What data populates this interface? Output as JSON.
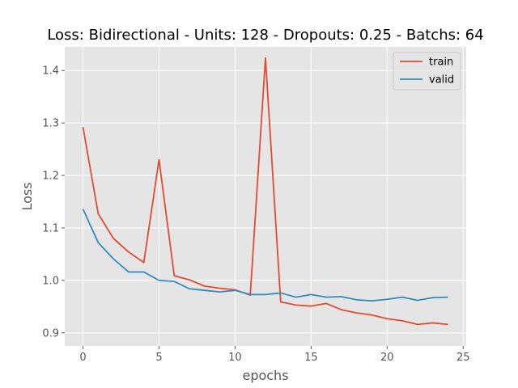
{
  "chart_data": {
    "type": "line",
    "title": "Loss: Bidirectional - Units: 128 - Dropouts: 0.25 - Batchs: 64",
    "xlabel": "epochs",
    "ylabel": "Loss",
    "xlim": [
      -1.2,
      25.2
    ],
    "ylim": [
      0.875,
      1.445
    ],
    "xticks": [
      0,
      5,
      10,
      15,
      20,
      25
    ],
    "yticks": [
      0.9,
      1.0,
      1.1,
      1.2,
      1.3,
      1.4
    ],
    "grid": true,
    "legend_position": "top-right",
    "x": [
      0,
      1,
      2,
      3,
      4,
      5,
      6,
      7,
      8,
      9,
      10,
      11,
      12,
      13,
      14,
      15,
      16,
      17,
      18,
      19,
      20,
      21,
      22,
      23,
      24
    ],
    "series": [
      {
        "name": "train",
        "color": "#e24a33",
        "values": [
          1.292,
          1.127,
          1.08,
          1.054,
          1.034,
          1.23,
          1.009,
          1.001,
          0.989,
          0.985,
          0.982,
          0.972,
          1.424,
          0.959,
          0.953,
          0.951,
          0.956,
          0.944,
          0.938,
          0.934,
          0.927,
          0.923,
          0.916,
          0.919,
          0.916
        ]
      },
      {
        "name": "valid",
        "color": "#348abd",
        "values": [
          1.136,
          1.072,
          1.041,
          1.016,
          1.016,
          1.0,
          0.998,
          0.984,
          0.981,
          0.978,
          0.981,
          0.973,
          0.973,
          0.976,
          0.968,
          0.973,
          0.968,
          0.969,
          0.963,
          0.961,
          0.964,
          0.968,
          0.962,
          0.967,
          0.968
        ]
      }
    ]
  }
}
